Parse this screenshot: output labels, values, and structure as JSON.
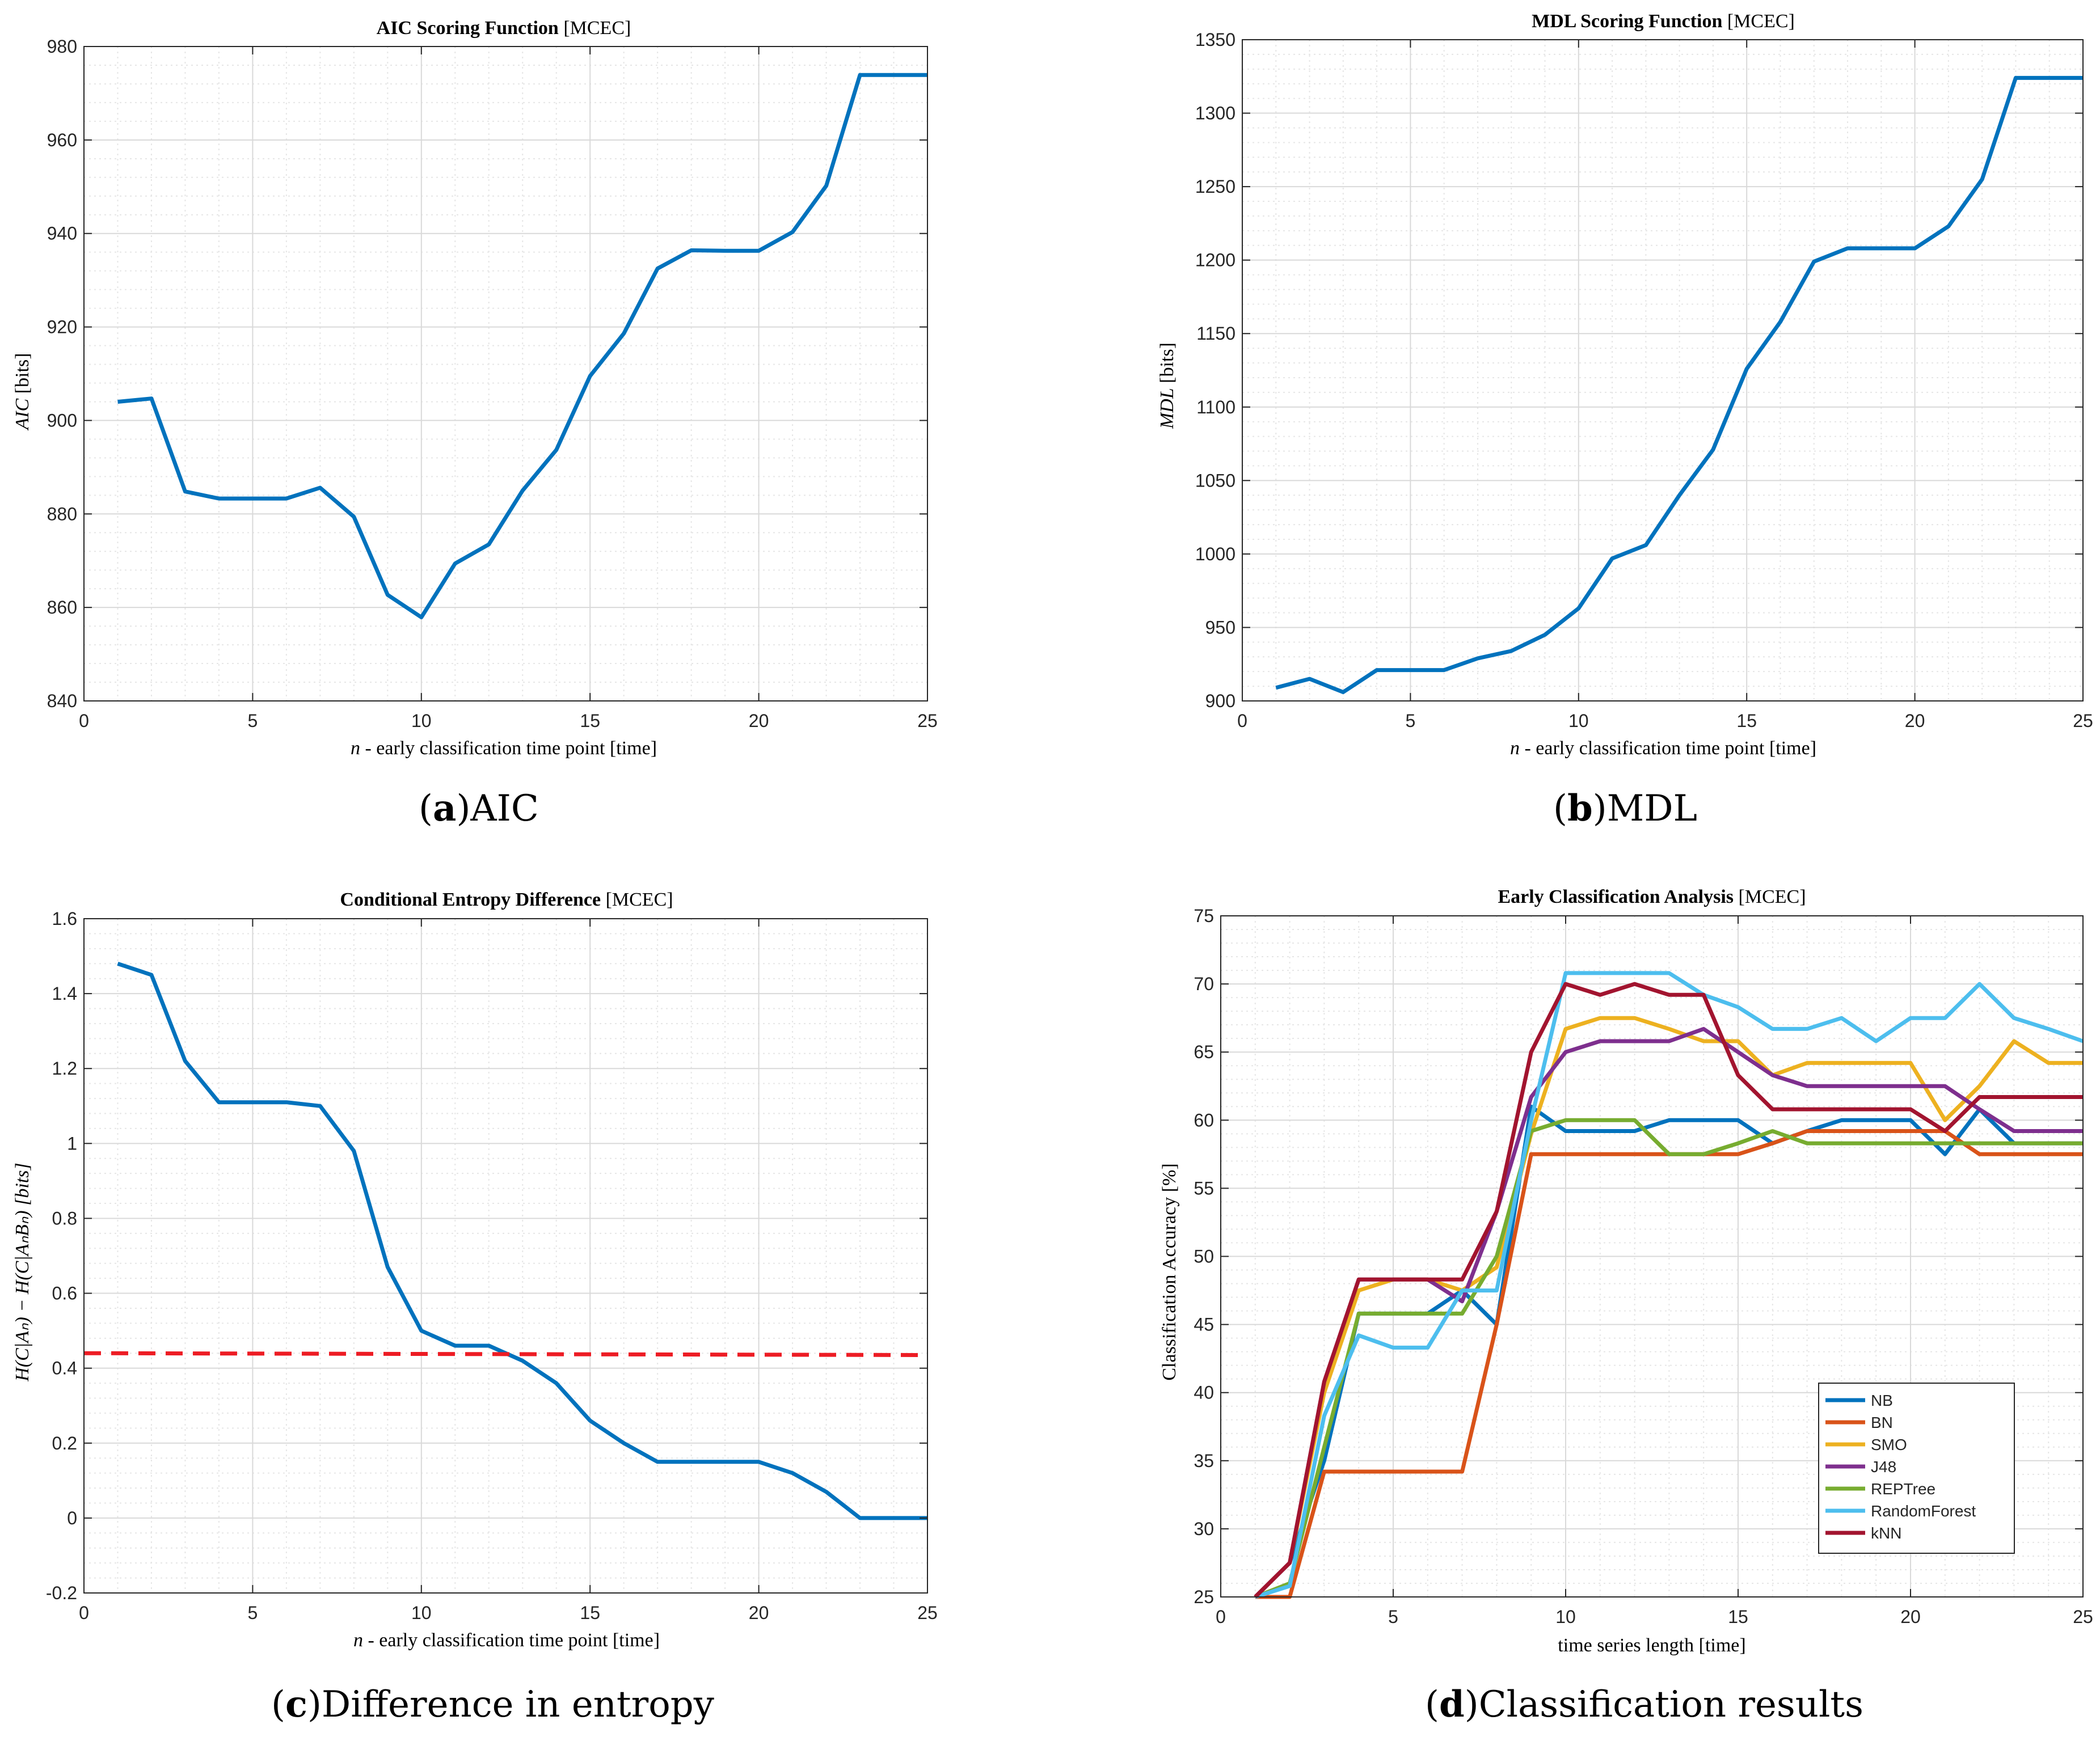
{
  "figure": {
    "captions": [
      {
        "letter": "a",
        "text": "AIC"
      },
      {
        "letter": "b",
        "text": "MDL"
      },
      {
        "letter": "c",
        "text": "Difference in entropy"
      },
      {
        "letter": "d",
        "text": "Classification results"
      }
    ]
  },
  "colors": {
    "series_blue": "#0072BD",
    "threshold_red": "#ED1C24",
    "NB": "#0072BD",
    "BN": "#D95319",
    "SMO": "#EDB120",
    "J48": "#7E2F8E",
    "REPTree": "#77AC30",
    "RandomForest": "#4DBEEE",
    "kNN": "#A2142F"
  },
  "chart_data": [
    {
      "id": "aic",
      "type": "line",
      "title_bold": "AIC Scoring Function",
      "title_tag": "[MCEC]",
      "xlabel_var": "n",
      "xlabel": " - early classification time point [time]",
      "ylabel_var": "AIC",
      "ylabel": " [bits]",
      "xlim": [
        0,
        25
      ],
      "ylim": [
        840,
        980
      ],
      "xticks": [
        0,
        5,
        10,
        15,
        20,
        25
      ],
      "yticks": [
        840,
        860,
        880,
        900,
        920,
        940,
        960,
        980
      ],
      "grid": true,
      "series": [
        {
          "name": "AIC",
          "color": "#0072BD",
          "x": [
            1,
            2,
            3,
            4,
            5,
            6,
            7,
            8,
            9,
            10,
            11,
            12,
            13,
            14,
            15,
            16,
            17,
            18,
            19,
            20,
            21,
            22,
            23,
            24,
            25
          ],
          "y": [
            904,
            904.7,
            884.8,
            883.3,
            883.3,
            883.3,
            885.6,
            879.4,
            862.7,
            857.9,
            869.4,
            873.5,
            885,
            893.7,
            909.5,
            918.6,
            932.5,
            936.4,
            936.3,
            936.3,
            940.3,
            950.2,
            973.9,
            973.9,
            973.9
          ]
        }
      ]
    },
    {
      "id": "mdl",
      "type": "line",
      "title_bold": "MDL Scoring Function",
      "title_tag": "[MCEC]",
      "xlabel_var": "n",
      "xlabel": " - early classification time point [time]",
      "ylabel_var": "MDL",
      "ylabel": " [bits]",
      "xlim": [
        0,
        25
      ],
      "ylim": [
        900,
        1350
      ],
      "xticks": [
        0,
        5,
        10,
        15,
        20,
        25
      ],
      "yticks": [
        900,
        950,
        1000,
        1050,
        1100,
        1150,
        1200,
        1250,
        1300,
        1350
      ],
      "grid": true,
      "series": [
        {
          "name": "MDL",
          "color": "#0072BD",
          "x": [
            1,
            2,
            3,
            4,
            5,
            6,
            7,
            8,
            9,
            10,
            11,
            12,
            13,
            14,
            15,
            16,
            17,
            18,
            19,
            20,
            21,
            22,
            23,
            24,
            25
          ],
          "y": [
            909,
            915,
            906,
            921,
            921,
            921,
            929,
            934,
            945,
            963,
            997,
            1006,
            1040,
            1071,
            1126,
            1158,
            1199,
            1208,
            1208,
            1208,
            1223,
            1255,
            1324,
            1324,
            1324
          ]
        }
      ]
    },
    {
      "id": "entropy",
      "type": "line",
      "title_bold": "Conditional Entropy Difference",
      "title_tag": "[MCEC]",
      "xlabel_var": "n",
      "xlabel": " - early classification time point [time]",
      "ylabel": "H(C|Aₙ) − H(C|AₙBₙ) [bits]",
      "xlim": [
        0,
        25
      ],
      "ylim": [
        -0.2,
        1.6
      ],
      "xticks": [
        0,
        5,
        10,
        15,
        20,
        25
      ],
      "yticks": [
        -0.2,
        0,
        0.2,
        0.4,
        0.6,
        0.8,
        1,
        1.2,
        1.4,
        1.6
      ],
      "ytick_labels": [
        "-0.2",
        "0",
        "0.2",
        "0.4",
        "0.6",
        "0.8",
        "1",
        "1.2",
        "1.4",
        "1.6"
      ],
      "grid": true,
      "series": [
        {
          "name": "difference",
          "color": "#0072BD",
          "x": [
            1,
            2,
            3,
            4,
            5,
            6,
            7,
            8,
            9,
            10,
            11,
            12,
            13,
            14,
            15,
            16,
            17,
            18,
            19,
            20,
            21,
            22,
            23,
            24,
            25
          ],
          "y": [
            1.48,
            1.45,
            1.22,
            1.11,
            1.11,
            1.11,
            1.1,
            0.98,
            0.67,
            0.5,
            0.46,
            0.46,
            0.42,
            0.36,
            0.26,
            0.2,
            0.15,
            0.15,
            0.15,
            0.15,
            0.12,
            0.07,
            0,
            0,
            0
          ]
        },
        {
          "name": "threshold",
          "color": "#ED1C24",
          "dashed": true,
          "x": [
            0,
            25
          ],
          "y": [
            0.44,
            0.435
          ]
        }
      ]
    },
    {
      "id": "classification",
      "type": "line",
      "title_bold": "Early Classification Analysis",
      "title_tag": "[MCEC]",
      "xlabel": "time series length [time]",
      "ylabel": "Classification Accuracy [%]",
      "xlim": [
        0,
        25
      ],
      "ylim": [
        25,
        75
      ],
      "xticks": [
        0,
        5,
        10,
        15,
        20,
        25
      ],
      "yticks": [
        25,
        30,
        35,
        40,
        45,
        50,
        55,
        60,
        65,
        70,
        75
      ],
      "grid": true,
      "legend": "lower-right",
      "series": [
        {
          "name": "NB",
          "color": "#0072BD",
          "x": [
            1,
            2,
            3,
            4,
            5,
            6,
            7,
            8,
            9,
            10,
            11,
            12,
            13,
            14,
            15,
            16,
            17,
            18,
            19,
            20,
            21,
            22,
            23,
            24,
            25
          ],
          "y": [
            25,
            27.5,
            35,
            45.8,
            45.8,
            45.8,
            47.5,
            45,
            61,
            59.2,
            59.2,
            59.2,
            60,
            60,
            60,
            58.3,
            59.2,
            60,
            60,
            60,
            57.5,
            60.8,
            58.3,
            58.3,
            58.3
          ]
        },
        {
          "name": "BN",
          "color": "#D95319",
          "x": [
            1,
            2,
            3,
            4,
            5,
            6,
            7,
            8,
            9,
            10,
            11,
            12,
            13,
            14,
            15,
            16,
            17,
            18,
            19,
            20,
            21,
            22,
            23,
            24,
            25
          ],
          "y": [
            25,
            25,
            34.2,
            34.2,
            34.2,
            34.2,
            34.2,
            45,
            57.5,
            57.5,
            57.5,
            57.5,
            57.5,
            57.5,
            57.5,
            58.3,
            59.2,
            59.2,
            59.2,
            59.2,
            59.2,
            57.5,
            57.5,
            57.5,
            57.5
          ]
        },
        {
          "name": "SMO",
          "color": "#EDB120",
          "x": [
            1,
            2,
            3,
            4,
            5,
            6,
            7,
            8,
            9,
            10,
            11,
            12,
            13,
            14,
            15,
            16,
            17,
            18,
            19,
            20,
            21,
            22,
            23,
            24,
            25
          ],
          "y": [
            25,
            27.5,
            40,
            47.5,
            48.3,
            48.3,
            47.5,
            49.2,
            59,
            66.7,
            67.5,
            67.5,
            66.7,
            65.8,
            65.8,
            63.3,
            64.2,
            64.2,
            64.2,
            64.2,
            60,
            62.5,
            65.8,
            64.2,
            64.2
          ]
        },
        {
          "name": "J48",
          "color": "#7E2F8E",
          "x": [
            1,
            2,
            3,
            4,
            5,
            6,
            7,
            8,
            9,
            10,
            11,
            12,
            13,
            14,
            15,
            16,
            17,
            18,
            19,
            20,
            21,
            22,
            23,
            24,
            25
          ],
          "y": [
            25,
            27.5,
            40.8,
            48.3,
            48.3,
            48.3,
            46.7,
            53.3,
            61.7,
            65,
            65.8,
            65.8,
            65.8,
            66.7,
            65,
            63.3,
            62.5,
            62.5,
            62.5,
            62.5,
            62.5,
            60.8,
            59.2,
            59.2,
            59.2
          ]
        },
        {
          "name": "REPTree",
          "color": "#77AC30",
          "x": [
            1,
            2,
            3,
            4,
            5,
            6,
            7,
            8,
            9,
            10,
            11,
            12,
            13,
            14,
            15,
            16,
            17,
            18,
            19,
            20,
            21,
            22,
            23,
            24,
            25
          ],
          "y": [
            25,
            26,
            36,
            45.8,
            45.8,
            45.8,
            45.8,
            50,
            59.2,
            60,
            60,
            60,
            57.5,
            57.5,
            58.3,
            59.2,
            58.3,
            58.3,
            58.3,
            58.3,
            58.3,
            58.3,
            58.3,
            58.3,
            58.3
          ]
        },
        {
          "name": "RandomForest",
          "color": "#4DBEEE",
          "x": [
            1,
            2,
            3,
            4,
            5,
            6,
            7,
            8,
            9,
            10,
            11,
            12,
            13,
            14,
            15,
            16,
            17,
            18,
            19,
            20,
            21,
            22,
            23,
            24,
            25
          ],
          "y": [
            25,
            25.8,
            38.3,
            44.2,
            43.3,
            43.3,
            47.5,
            47.5,
            60,
            70.8,
            70.8,
            70.8,
            70.8,
            69.2,
            68.3,
            66.7,
            66.7,
            67.5,
            65.8,
            67.5,
            67.5,
            70,
            67.5,
            66.7,
            65.8
          ]
        },
        {
          "name": "kNN",
          "color": "#A2142F",
          "x": [
            1,
            2,
            3,
            4,
            5,
            6,
            7,
            8,
            9,
            10,
            11,
            12,
            13,
            14,
            15,
            16,
            17,
            18,
            19,
            20,
            21,
            22,
            23,
            24,
            25
          ],
          "y": [
            25,
            27.5,
            40.8,
            48.3,
            48.3,
            48.3,
            48.3,
            53.3,
            65,
            70,
            69.2,
            70,
            69.2,
            69.2,
            63.3,
            60.8,
            60.8,
            60.8,
            60.8,
            60.8,
            59.2,
            61.7,
            61.7,
            61.7,
            61.7
          ]
        }
      ]
    }
  ]
}
